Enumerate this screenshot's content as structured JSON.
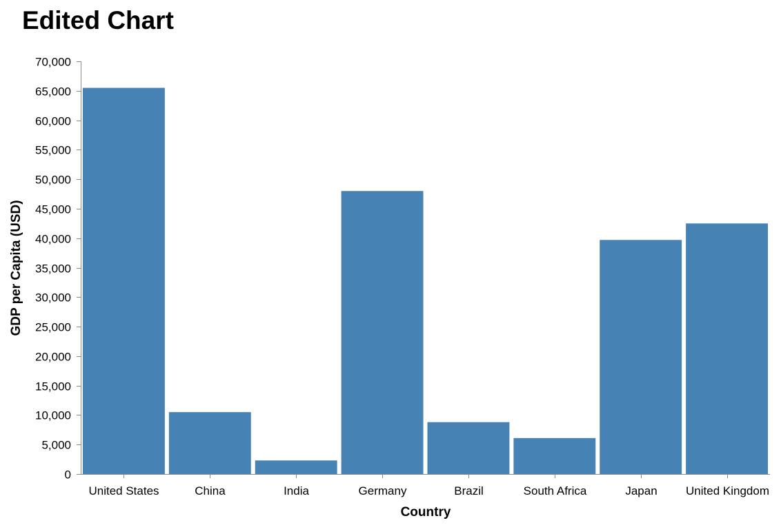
{
  "chart_data": {
    "type": "bar",
    "title": "Edited Chart",
    "xlabel": "Country",
    "ylabel": "GDP per Capita (USD)",
    "categories": [
      "United States",
      "China",
      "India",
      "Germany",
      "Brazil",
      "South Africa",
      "Japan",
      "United Kingdom"
    ],
    "values": [
      65500,
      10500,
      2300,
      48000,
      8800,
      6100,
      39700,
      42500
    ],
    "ylim": [
      0,
      70000
    ],
    "yticks": [
      0,
      5000,
      10000,
      15000,
      20000,
      25000,
      30000,
      35000,
      40000,
      45000,
      50000,
      55000,
      60000,
      65000,
      70000
    ],
    "ytick_labels": [
      "0",
      "5,000",
      "10,000",
      "15,000",
      "20,000",
      "25,000",
      "30,000",
      "35,000",
      "40,000",
      "45,000",
      "50,000",
      "55,000",
      "60,000",
      "65,000",
      "70,000"
    ],
    "bar_color": "#4682b4",
    "grid": false,
    "legend": "none"
  }
}
